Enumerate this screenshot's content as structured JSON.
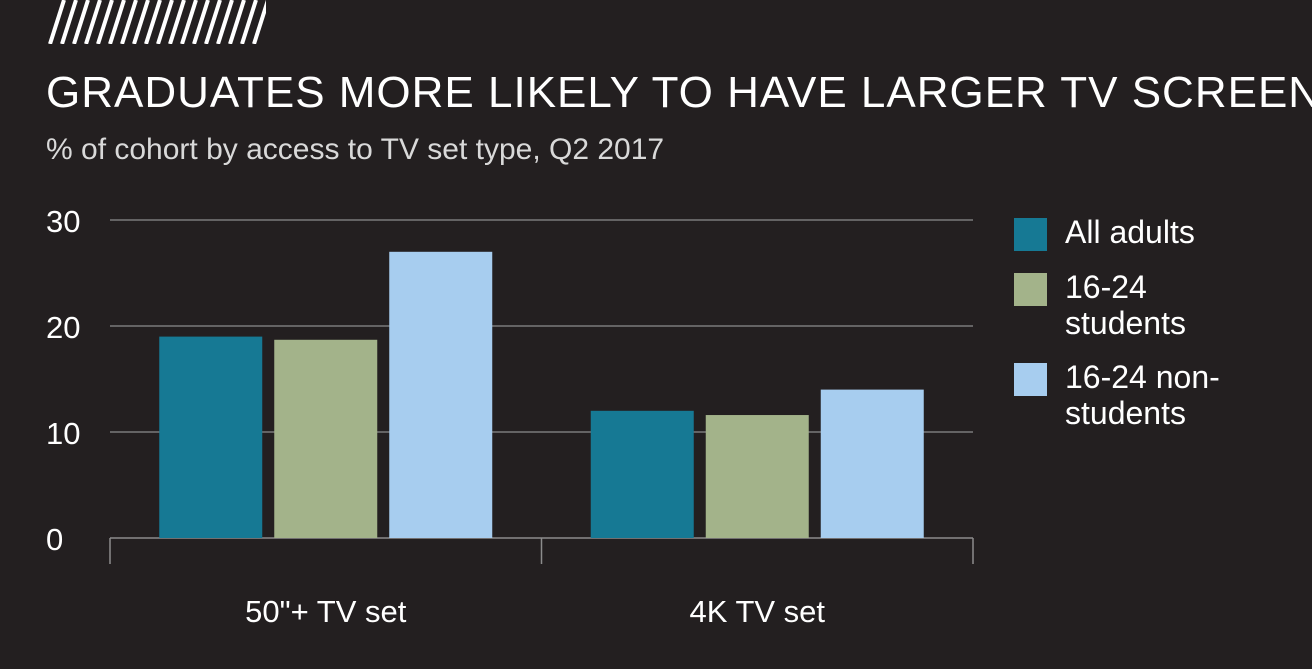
{
  "header": {
    "title": "GRADUATES MORE LIKELY TO HAVE LARGER TV SCREEN",
    "subtitle": "% of cohort by access to TV set type, Q2 2017"
  },
  "colors": {
    "background": "#231f20",
    "grid": "#8c8c8c",
    "series": [
      "#167994",
      "#a3b38a",
      "#a7cdef"
    ]
  },
  "chart_data": {
    "type": "bar",
    "title": "GRADUATES MORE LIKELY TO HAVE LARGER TV SCREEN",
    "subtitle": "% of cohort by access to TV set type, Q2 2017",
    "categories": [
      "50\"+ TV set",
      "4K TV set"
    ],
    "series": [
      {
        "name": "All adults",
        "values": [
          19,
          12
        ]
      },
      {
        "name": "16-24 students",
        "values": [
          18.7,
          11.6
        ]
      },
      {
        "name": "16-24 non-students",
        "values": [
          27,
          14
        ]
      }
    ],
    "yticks": [
      0,
      10,
      20,
      30
    ],
    "ylim": [
      0,
      31
    ],
    "xlabel": "",
    "ylabel": "",
    "grid": true,
    "legend_position": "right"
  }
}
